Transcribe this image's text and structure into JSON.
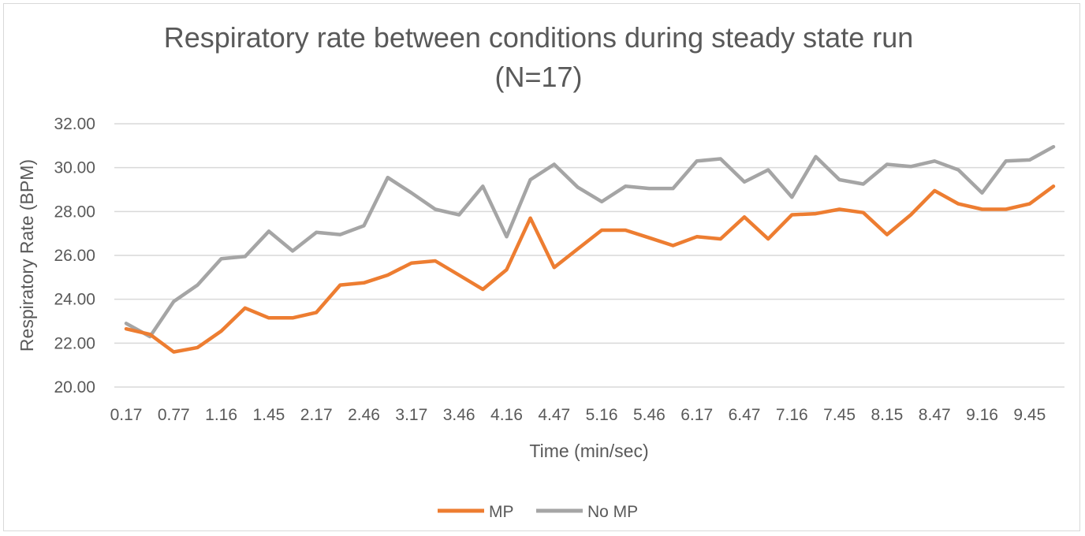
{
  "chart_data": {
    "type": "line",
    "title_line1": "Respiratory rate between conditions during steady state run",
    "title_line2": "(N=17)",
    "xlabel": "Time (min/sec)",
    "ylabel": "Respiratory Rate (BPM)",
    "ylim": [
      20,
      32
    ],
    "yticks": [
      "20.00",
      "22.00",
      "24.00",
      "26.00",
      "28.00",
      "30.00",
      "32.00"
    ],
    "xtick_labels": [
      "0.17",
      "0.77",
      "1.16",
      "1.45",
      "2.17",
      "2.46",
      "3.17",
      "3.46",
      "4.16",
      "4.47",
      "5.16",
      "5.46",
      "6.17",
      "6.47",
      "7.16",
      "7.45",
      "8.15",
      "8.47",
      "9.16",
      "9.45"
    ],
    "grid": true,
    "legend_position": "bottom",
    "series": [
      {
        "name": "MP",
        "color": "#ED7D31",
        "values": [
          22.65,
          22.4,
          21.6,
          21.8,
          22.55,
          23.6,
          23.15,
          23.15,
          23.4,
          24.65,
          24.75,
          25.1,
          25.65,
          25.75,
          25.1,
          24.45,
          25.35,
          27.7,
          25.45,
          26.3,
          27.15,
          27.15,
          26.8,
          26.45,
          26.85,
          26.75,
          27.75,
          26.75,
          27.85,
          27.9,
          28.1,
          27.95,
          26.95,
          27.85,
          28.95,
          28.35,
          28.1,
          28.1,
          28.35,
          29.15
        ]
      },
      {
        "name": "No MP",
        "color": "#A5A5A5",
        "values": [
          22.9,
          22.3,
          23.9,
          24.65,
          25.85,
          25.95,
          27.1,
          26.2,
          27.05,
          26.95,
          27.35,
          29.55,
          28.85,
          28.1,
          27.85,
          29.15,
          26.85,
          29.45,
          30.15,
          29.1,
          28.45,
          29.15,
          29.05,
          29.05,
          30.3,
          30.4,
          29.35,
          29.9,
          28.65,
          30.5,
          29.45,
          29.25,
          30.15,
          30.05,
          30.3,
          29.9,
          28.85,
          30.3,
          30.35,
          30.95
        ]
      }
    ]
  }
}
